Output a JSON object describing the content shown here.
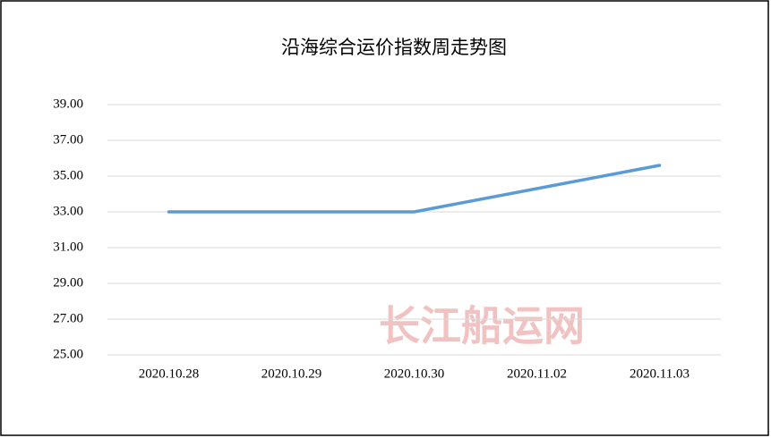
{
  "chart_data": {
    "type": "line",
    "title": "沿海综合运价指数周走势图",
    "categories": [
      "2020.10.28",
      "2020.10.29",
      "2020.10.30",
      "2020.11.02",
      "2020.11.03"
    ],
    "series": [
      {
        "name": "沿海综合运价指数",
        "color": "#5b9bd5",
        "values": [
          33,
          33,
          33,
          34.3,
          35.6
        ]
      }
    ],
    "ylim": [
      25,
      39
    ],
    "yticks": [
      {
        "value": 25,
        "label": "25.00"
      },
      {
        "value": 27,
        "label": "27.00"
      },
      {
        "value": 29,
        "label": "29.00"
      },
      {
        "value": 31,
        "label": "31.00"
      },
      {
        "value": 33,
        "label": "33.00"
      },
      {
        "value": 35,
        "label": "35.00"
      },
      {
        "value": 37,
        "label": "37.00"
      },
      {
        "value": 39,
        "label": "39.00"
      }
    ],
    "grid": true,
    "legend": false,
    "watermark": "长江船运网"
  }
}
